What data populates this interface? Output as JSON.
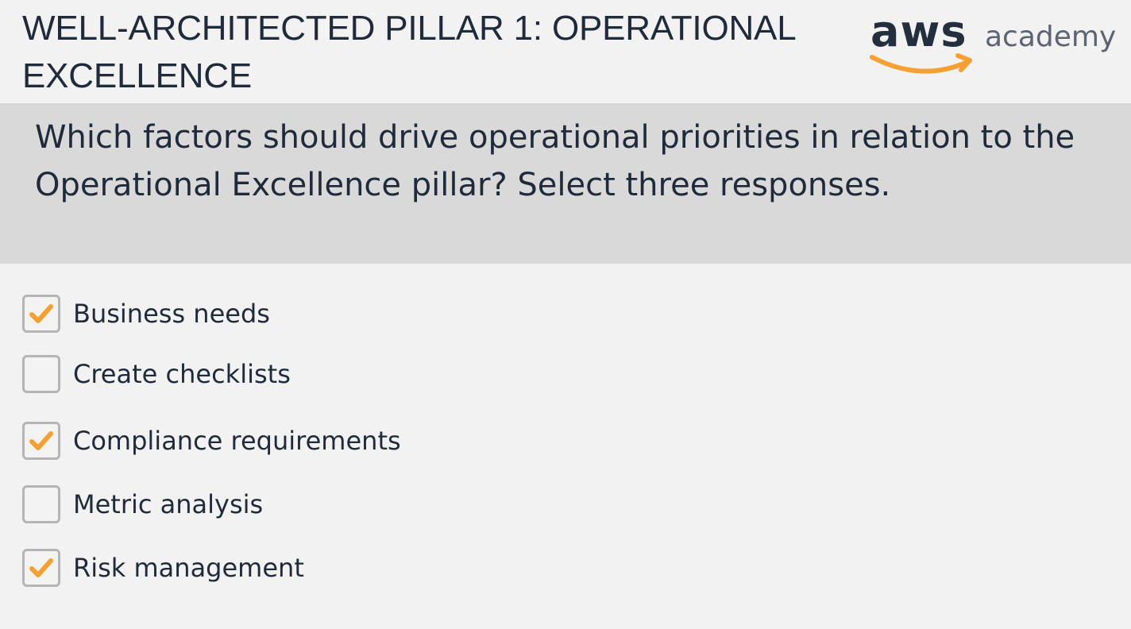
{
  "header": {
    "title": "WELL-ARCHITECTED PILLAR 1: OPERATIONAL EXCELLENCE",
    "logo": {
      "brand": "aws",
      "product": "academy",
      "text_color": "#232f3e",
      "smile_color": "#f5a030",
      "product_color": "#5b6470"
    }
  },
  "question": {
    "text": "Which factors should drive operational priorities in relation to the Operational Excellence pillar? Select three responses."
  },
  "options": [
    {
      "label": "Business needs",
      "checked": true
    },
    {
      "label": "Create checklists",
      "checked": false
    },
    {
      "label": "Compliance requirements",
      "checked": true
    },
    {
      "label": "Metric analysis",
      "checked": false
    },
    {
      "label": "Risk management",
      "checked": true
    }
  ],
  "colors": {
    "check_accent": "#f5a030",
    "question_band": "#d9d9d9",
    "page_background": "#f2f2f2",
    "text": "#1f2a3a"
  }
}
